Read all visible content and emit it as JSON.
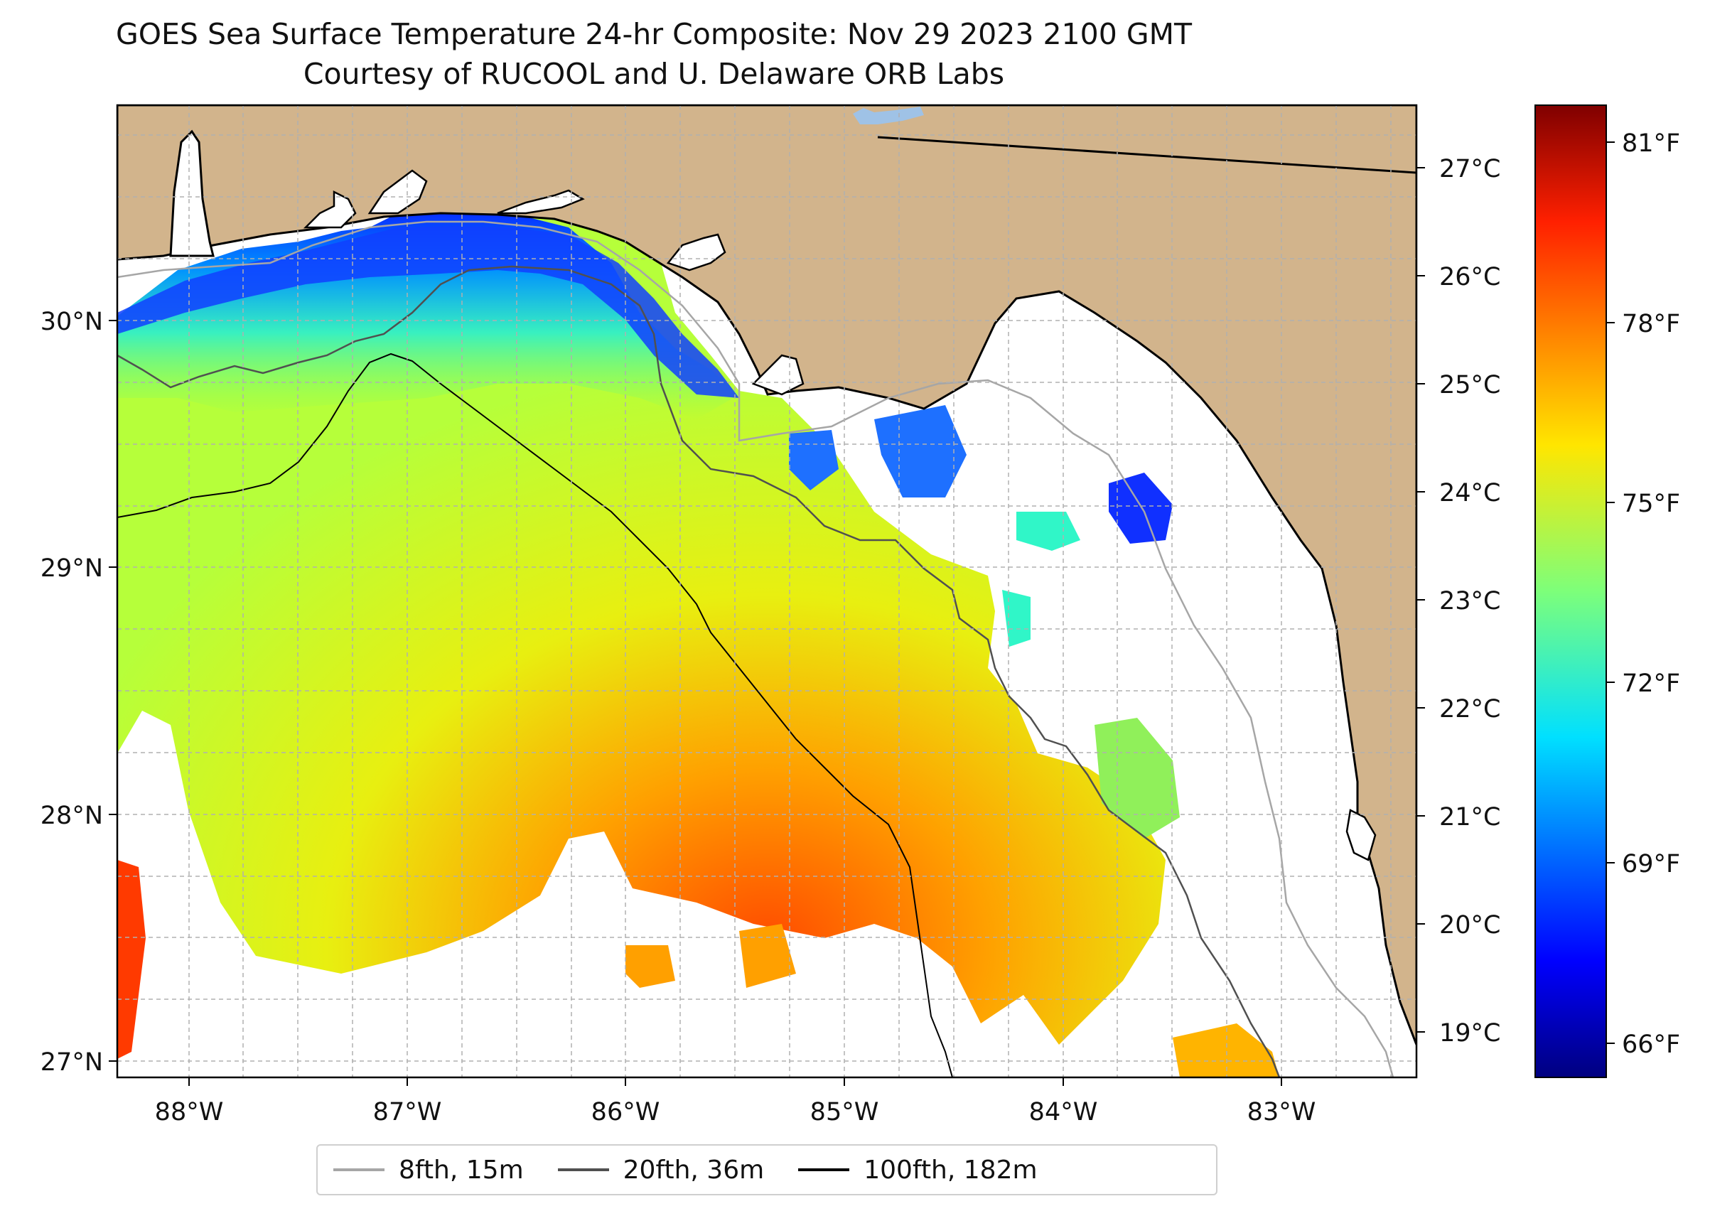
{
  "title": {
    "line1": "GOES Sea Surface Temperature 24-hr Composite: Nov 29 2023 2100 GMT",
    "line2": "Courtesy of RUCOOL and U. Delaware ORB Labs"
  },
  "map": {
    "region": "Northeastern Gulf of Mexico",
    "lon_range": [
      -88.33,
      -82.38
    ],
    "lat_range": [
      26.93,
      30.86
    ],
    "lon_ticks": [
      "88°W",
      "87°W",
      "86°W",
      "85°W",
      "84°W",
      "83°W"
    ],
    "lat_ticks": [
      "27°N",
      "28°N",
      "29°N",
      "30°N"
    ],
    "colors": {
      "land": "#d2b48c",
      "coastline": "#000000",
      "grid": "#b0b0b0",
      "no_data": "#ffffff",
      "lake": "#9fc2e6"
    },
    "isobaths": [
      {
        "label": "8fth, 15m",
        "color": "#a6a6a6"
      },
      {
        "label": "20fth, 36m",
        "color": "#505050"
      },
      {
        "label": "100fth, 182m",
        "color": "#000000"
      }
    ]
  },
  "colorbar": {
    "colormap": "jet",
    "celsius_range": [
      18.6,
      27.6
    ],
    "celsius_ticks": [
      "19°C",
      "20°C",
      "21°C",
      "22°C",
      "23°C",
      "24°C",
      "25°C",
      "26°C",
      "27°C"
    ],
    "fahrenheit_ticks": [
      "66°F",
      "69°F",
      "72°F",
      "75°F",
      "78°F",
      "81°F"
    ],
    "fahrenheit_values": [
      66,
      69,
      72,
      75,
      78,
      81
    ]
  }
}
